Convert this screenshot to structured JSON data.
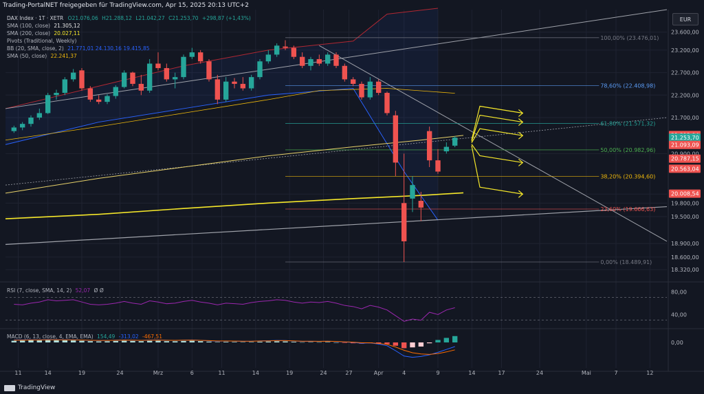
{
  "header": {
    "title": "Trading-PortalNET freigegeben für TradingView.com, Apr 15, 2025 20:13 UTC+2"
  },
  "currency_button": "EUR",
  "legend": {
    "symbol": "DAX Index · 1T · XETR",
    "ohlc": {
      "o": "O21.076,06",
      "h": "H21.288,12",
      "l": "L21.042,27",
      "c": "C21.253,70",
      "chg": "+298,87 (+1,43%)"
    },
    "sma100": {
      "label": "SMA (100, close)",
      "value": "21.305,12",
      "color": "#e8e8e8"
    },
    "sma200": {
      "label": "SMA (200, close)",
      "value": "20.027,11",
      "color": "#f5e72a"
    },
    "pivots": {
      "label": "Pivots (Traditional, Weekly)"
    },
    "bb": {
      "label": "BB (20, SMA, close, 2)",
      "values": "21.771,01  24.130,16  19.415,85"
    },
    "sma50": {
      "label": "SMA (50, close)",
      "value": "22.241,37",
      "color": "#f0b90b"
    }
  },
  "rsi": {
    "label": "RSI (7, close, SMA, 14, 2)",
    "value": "52,07",
    "extra": "Ø  Ø",
    "ticks": [
      "80,00",
      "40,00"
    ]
  },
  "macd": {
    "label": "MACD (6, 13, close, 4, EMA, EMA)",
    "values": [
      "154,49",
      "-313,02",
      "-467,51"
    ],
    "tick": "0,00"
  },
  "footer": {
    "brand": "TradingView"
  },
  "colors": {
    "up": "#26a69a",
    "down": "#ef5350",
    "bg": "#131722",
    "fib": "#5d606b"
  },
  "chart_data": {
    "type": "candlestick",
    "title": "DAX Index · 1T · XETR",
    "y_ticks": [
      "23.600,00",
      "23.200,00",
      "22.700,00",
      "22.200,00",
      "21.700,00",
      "20.900,00",
      "20.000,00",
      "19.800,00",
      "19.500,00",
      "18.900,00",
      "18.600,00",
      "18.320,00"
    ],
    "y_tick_values": [
      23600,
      23200,
      22700,
      22200,
      21700,
      20900,
      20000,
      19800,
      19500,
      18900,
      18600,
      18320
    ],
    "ylim": [
      18200,
      24100
    ],
    "x_tick_labels": [
      "11",
      "14",
      "19",
      "24",
      "Mrz",
      "6",
      "11",
      "14",
      "19",
      "24",
      "27",
      "Apr",
      "4",
      "9",
      "14",
      "17",
      "24",
      "Mai",
      "7",
      "12"
    ],
    "x_tick_index": [
      0.5,
      4,
      8,
      12.5,
      17,
      21,
      24.5,
      28.5,
      32.5,
      36.5,
      39.5,
      43,
      46,
      50,
      54,
      57.5,
      62,
      67.5,
      71,
      75
    ],
    "x_range": [
      -1,
      77
    ],
    "candles": [
      {
        "o": 21400,
        "h": 21520,
        "l": 21360,
        "c": 21480
      },
      {
        "o": 21480,
        "h": 21600,
        "l": 21420,
        "c": 21560
      },
      {
        "o": 21560,
        "h": 21750,
        "l": 21500,
        "c": 21700
      },
      {
        "o": 21700,
        "h": 21900,
        "l": 21650,
        "c": 21800
      },
      {
        "o": 21800,
        "h": 22250,
        "l": 21780,
        "c": 22200
      },
      {
        "o": 22200,
        "h": 22320,
        "l": 22100,
        "c": 22250
      },
      {
        "o": 22250,
        "h": 22600,
        "l": 22200,
        "c": 22550
      },
      {
        "o": 22550,
        "h": 22780,
        "l": 22500,
        "c": 22700
      },
      {
        "o": 22750,
        "h": 22800,
        "l": 22300,
        "c": 22350
      },
      {
        "o": 22350,
        "h": 22400,
        "l": 22050,
        "c": 22100
      },
      {
        "o": 22100,
        "h": 22200,
        "l": 22000,
        "c": 22050
      },
      {
        "o": 22050,
        "h": 22220,
        "l": 22000,
        "c": 22180
      },
      {
        "o": 22180,
        "h": 22420,
        "l": 22120,
        "c": 22380
      },
      {
        "o": 22380,
        "h": 22750,
        "l": 22350,
        "c": 22700
      },
      {
        "o": 22700,
        "h": 22720,
        "l": 22400,
        "c": 22450
      },
      {
        "o": 22450,
        "h": 22650,
        "l": 22200,
        "c": 22300
      },
      {
        "o": 22300,
        "h": 23000,
        "l": 22250,
        "c": 22900
      },
      {
        "o": 22900,
        "h": 23150,
        "l": 22750,
        "c": 22800
      },
      {
        "o": 22800,
        "h": 22900,
        "l": 22500,
        "c": 22550
      },
      {
        "o": 22550,
        "h": 22700,
        "l": 22350,
        "c": 22600
      },
      {
        "o": 22600,
        "h": 23100,
        "l": 22550,
        "c": 23050
      },
      {
        "o": 23050,
        "h": 23250,
        "l": 23000,
        "c": 23150
      },
      {
        "o": 23150,
        "h": 23200,
        "l": 22900,
        "c": 22950
      },
      {
        "o": 22950,
        "h": 23000,
        "l": 22500,
        "c": 22550
      },
      {
        "o": 22550,
        "h": 22650,
        "l": 22000,
        "c": 22100
      },
      {
        "o": 22100,
        "h": 22600,
        "l": 22050,
        "c": 22500
      },
      {
        "o": 22500,
        "h": 22580,
        "l": 22350,
        "c": 22450
      },
      {
        "o": 22450,
        "h": 22600,
        "l": 22300,
        "c": 22350
      },
      {
        "o": 22350,
        "h": 22650,
        "l": 22300,
        "c": 22600
      },
      {
        "o": 22600,
        "h": 23000,
        "l": 22550,
        "c": 22950
      },
      {
        "o": 22950,
        "h": 23200,
        "l": 22900,
        "c": 23100
      },
      {
        "o": 23100,
        "h": 23350,
        "l": 23050,
        "c": 23300
      },
      {
        "o": 23280,
        "h": 23420,
        "l": 23200,
        "c": 23250
      },
      {
        "o": 23250,
        "h": 23300,
        "l": 23000,
        "c": 23050
      },
      {
        "o": 23050,
        "h": 23150,
        "l": 22800,
        "c": 22850
      },
      {
        "o": 22850,
        "h": 23050,
        "l": 22750,
        "c": 23000
      },
      {
        "o": 23000,
        "h": 23100,
        "l": 22850,
        "c": 22900
      },
      {
        "o": 22900,
        "h": 23150,
        "l": 22850,
        "c": 23100
      },
      {
        "o": 23100,
        "h": 23150,
        "l": 22800,
        "c": 22850
      },
      {
        "o": 22850,
        "h": 22900,
        "l": 22500,
        "c": 22550
      },
      {
        "o": 22550,
        "h": 22600,
        "l": 22400,
        "c": 22450
      },
      {
        "o": 22450,
        "h": 22500,
        "l": 22100,
        "c": 22150
      },
      {
        "o": 22150,
        "h": 22600,
        "l": 22100,
        "c": 22500
      },
      {
        "o": 22500,
        "h": 22550,
        "l": 22200,
        "c": 22250
      },
      {
        "o": 22250,
        "h": 22280,
        "l": 21750,
        "c": 21800
      },
      {
        "o": 21750,
        "h": 21850,
        "l": 20400,
        "c": 20700
      },
      {
        "o": 19800,
        "h": 20900,
        "l": 18490,
        "c": 18950
      },
      {
        "o": 19900,
        "h": 20400,
        "l": 19600,
        "c": 20200
      },
      {
        "o": 19850,
        "h": 20050,
        "l": 19400,
        "c": 19700
      },
      {
        "o": 21400,
        "h": 21500,
        "l": 20600,
        "c": 20750
      },
      {
        "o": 20750,
        "h": 21000,
        "l": 20450,
        "c": 20500
      },
      {
        "o": 20950,
        "h": 21150,
        "l": 20900,
        "c": 21050
      },
      {
        "o": 21076,
        "h": 21288,
        "l": 21042,
        "c": 21254
      }
    ],
    "candle_index": [
      0,
      1,
      2,
      3,
      4,
      5,
      6,
      7,
      8,
      9,
      10,
      11,
      12,
      13,
      14,
      15,
      16,
      17,
      18,
      19,
      20,
      21,
      22,
      23,
      24,
      25,
      26,
      27,
      28,
      29,
      30,
      31,
      32,
      33,
      34,
      35,
      36,
      37,
      38,
      39,
      40,
      41,
      42,
      43,
      44,
      45,
      46,
      47,
      48,
      49,
      50,
      51,
      52
    ],
    "fib_levels": [
      {
        "label": "100,00% (23.476,01)",
        "value": 23476,
        "color": "#787b86"
      },
      {
        "label": "78,60% (22.408,98)",
        "value": 22409,
        "color": "#5b9cf6"
      },
      {
        "label": "61,80% (21.571,32)",
        "value": 21571,
        "color": "#26a69a"
      },
      {
        "label": "50,00% (20.982,96)",
        "value": 20983,
        "color": "#4caf50"
      },
      {
        "label": "38,20% (20.394,60)",
        "value": 20395,
        "color": "#f0b90b"
      },
      {
        "label": "23,60% (19.666,63)",
        "value": 19667,
        "color": "#ef5350"
      },
      {
        "label": "0,00% (18.489,91)",
        "value": 18490,
        "color": "#787b86"
      }
    ],
    "price_tags": [
      {
        "label": "21.312,94",
        "value": 21313,
        "color": "#ef5350"
      },
      {
        "label": "21.253,70",
        "value": 21254,
        "color": "#26a69a"
      },
      {
        "label": "21.093,09",
        "value": 21093,
        "color": "#ef5350"
      },
      {
        "label": "20.787,15",
        "value": 20787,
        "color": "#ef5350"
      },
      {
        "label": "20.563,04",
        "value": 20563,
        "color": "#ef5350"
      },
      {
        "label": "20.008,54",
        "value": 20009,
        "color": "#ef5350"
      }
    ],
    "sma200_points": [
      [
        -1,
        19450
      ],
      [
        10,
        19550
      ],
      [
        20,
        19680
      ],
      [
        30,
        19800
      ],
      [
        40,
        19900
      ],
      [
        48,
        19970
      ],
      [
        53,
        20027
      ]
    ],
    "sma100_points": [
      [
        -1,
        20020
      ],
      [
        10,
        20350
      ],
      [
        20,
        20600
      ],
      [
        30,
        20850
      ],
      [
        40,
        21050
      ],
      [
        48,
        21200
      ],
      [
        53,
        21305
      ]
    ],
    "sma50_points": [
      [
        -1,
        21200
      ],
      [
        10,
        21500
      ],
      [
        20,
        21800
      ],
      [
        30,
        22100
      ],
      [
        36,
        22300
      ],
      [
        44,
        22350
      ],
      [
        52,
        22241
      ]
    ],
    "bb_upper_points": [
      [
        -1,
        21900
      ],
      [
        10,
        22400
      ],
      [
        20,
        22850
      ],
      [
        30,
        23200
      ],
      [
        40,
        23400
      ],
      [
        44,
        24000
      ],
      [
        50,
        24130
      ]
    ],
    "bb_lower_points": [
      [
        -1,
        21100
      ],
      [
        10,
        21600
      ],
      [
        20,
        21900
      ],
      [
        30,
        22200
      ],
      [
        40,
        22350
      ],
      [
        46,
        20500
      ],
      [
        50,
        19420
      ]
    ]
  }
}
